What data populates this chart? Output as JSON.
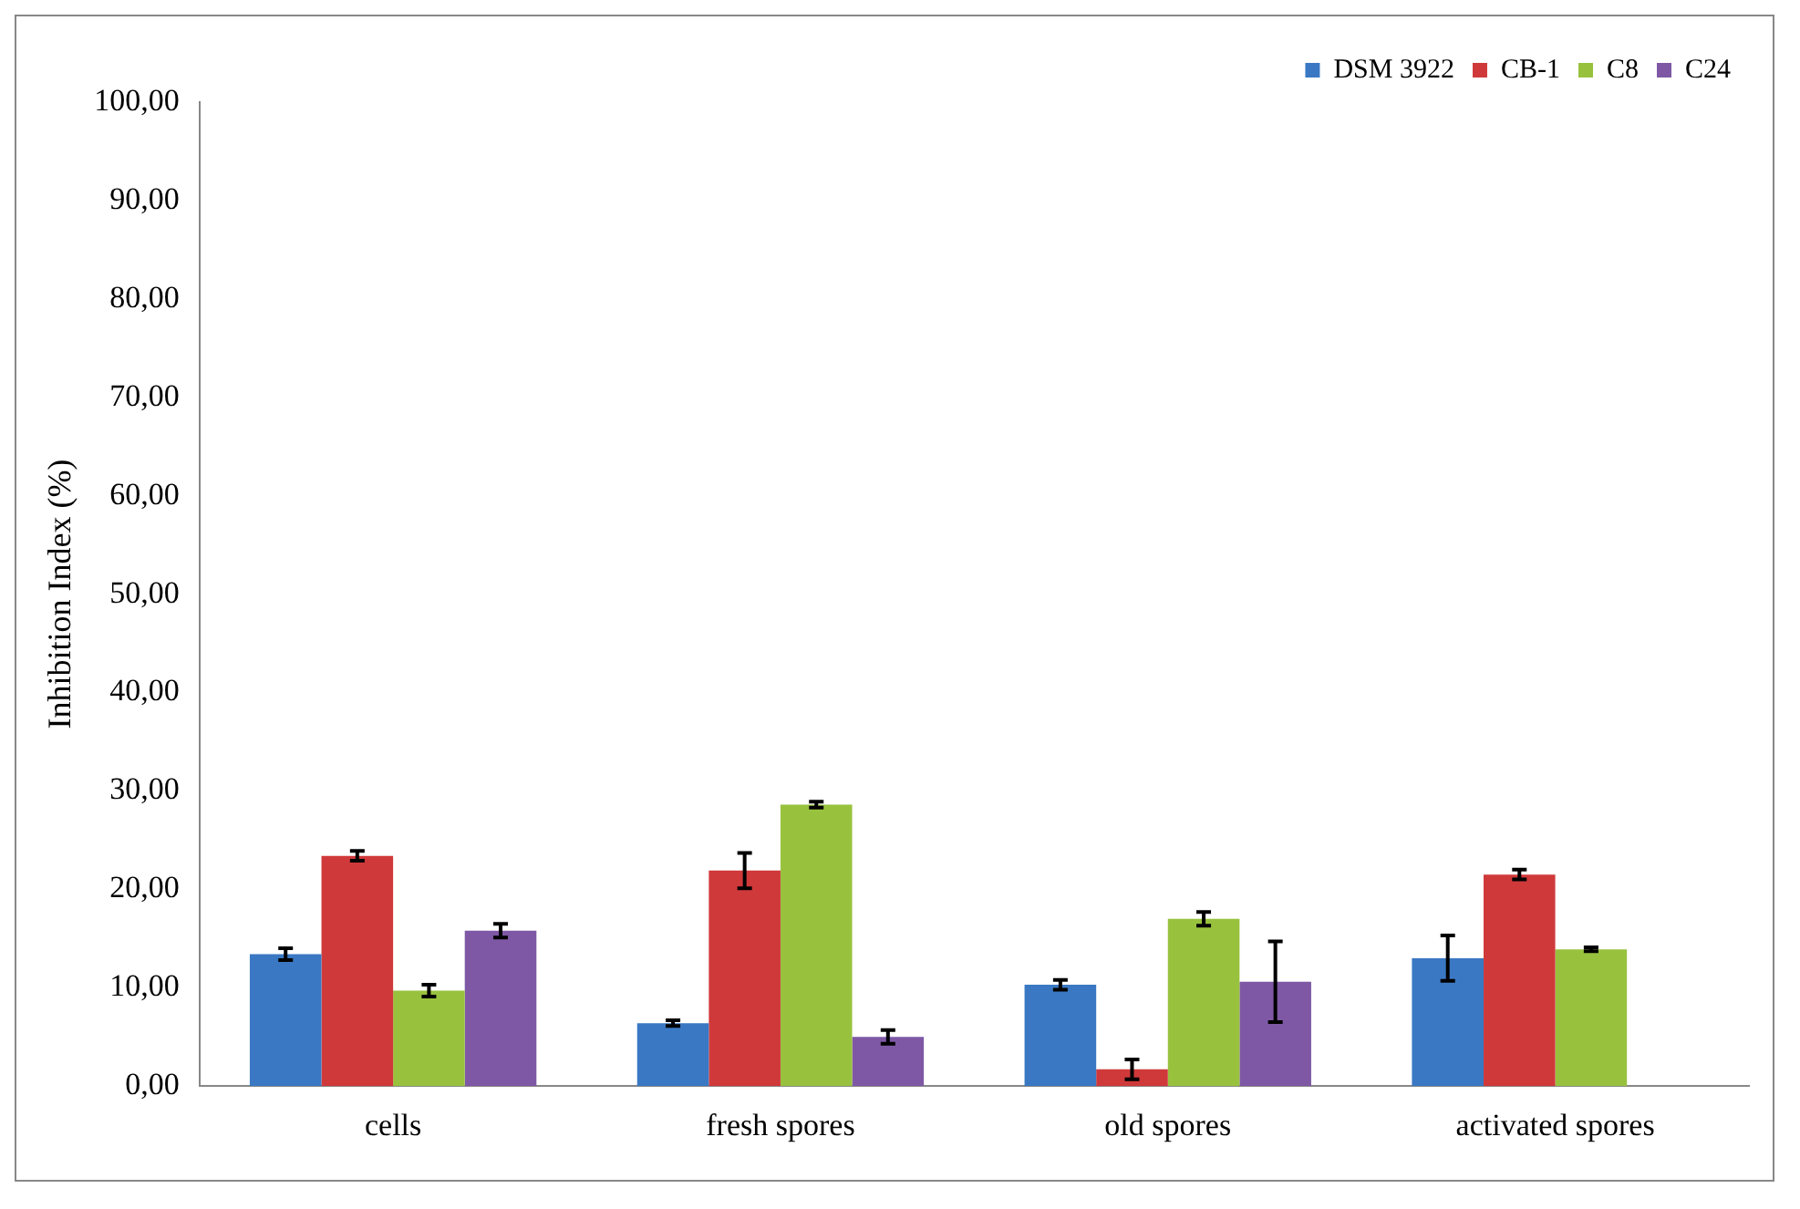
{
  "chart_data": {
    "type": "bar",
    "ylabel": "Inhibition Index (%)",
    "categories": [
      "cells",
      "fresh spores",
      "old spores",
      "activated spores"
    ],
    "series": [
      {
        "name": "DSM 3922",
        "color": "#3a78c3",
        "values": [
          13.4,
          6.4,
          10.3,
          13.0
        ],
        "errors": [
          0.6,
          0.3,
          0.5,
          2.3
        ]
      },
      {
        "name": "CB-1",
        "color": "#d0393a",
        "values": [
          23.4,
          21.9,
          1.7,
          21.5
        ],
        "errors": [
          0.5,
          1.8,
          1.0,
          0.5
        ]
      },
      {
        "name": "C8",
        "color": "#98c23e",
        "values": [
          9.7,
          28.6,
          17.0,
          13.9
        ],
        "errors": [
          0.6,
          0.3,
          0.7,
          0.2
        ]
      },
      {
        "name": "C24",
        "color": "#7e58a5",
        "values": [
          15.8,
          5.0,
          10.6,
          null
        ],
        "errors": [
          0.7,
          0.7,
          4.1,
          null
        ]
      }
    ],
    "ylim": [
      0,
      100
    ],
    "yticks": [
      {
        "value": 0,
        "label": "0,00"
      },
      {
        "value": 10,
        "label": "10,00"
      },
      {
        "value": 20,
        "label": "20,00"
      },
      {
        "value": 30,
        "label": "30,00"
      },
      {
        "value": 40,
        "label": "40,00"
      },
      {
        "value": 50,
        "label": "50,00"
      },
      {
        "value": 60,
        "label": "60,00"
      },
      {
        "value": 70,
        "label": "70,00"
      },
      {
        "value": 80,
        "label": "80,00"
      },
      {
        "value": 90,
        "label": "90,00"
      },
      {
        "value": 100,
        "label": "100,00"
      }
    ],
    "grid": false,
    "legend": "top right"
  }
}
